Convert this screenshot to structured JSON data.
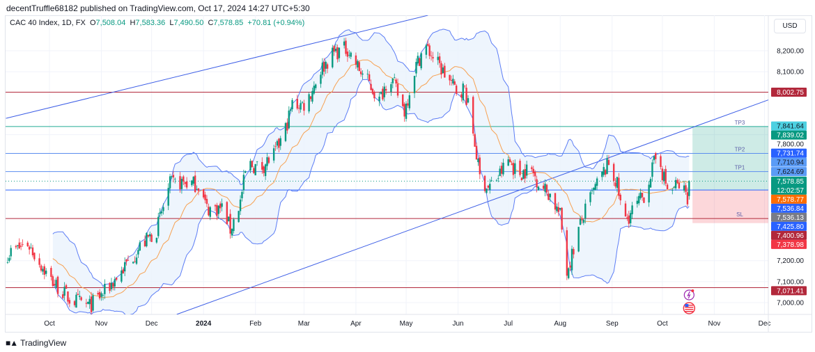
{
  "header": {
    "published": "decentTruffle68182 published on TradingView.com, Oct 17, 2024 14:27 UTC+5:30"
  },
  "legend": {
    "symbol": "CAC 40 Index, 1D, FX",
    "open_label": "O",
    "open": "7,508.04",
    "high_label": "H",
    "high": "7,583.36",
    "low_label": "L",
    "low": "7,490.50",
    "close_label": "C",
    "close": "7,578.85",
    "change": "+70.81 (+0.94%)"
  },
  "currency": "USD",
  "footer": {
    "brand": "TradingView",
    "logo_text": "TV"
  },
  "colors": {
    "up": "#089981",
    "down": "#f23645",
    "bands": "#5b7cf5",
    "basis": "#f7a050",
    "band_fill": "#eaf3fd"
  },
  "chart_data": {
    "type": "candlestick",
    "symbol": "CAC 40 Index",
    "interval": "1D",
    "indicators": [
      "Bollinger Bands (20, 2)"
    ],
    "x_ticks": [
      {
        "date": "2023-10-01",
        "label": "Oct"
      },
      {
        "date": "2023-11-01",
        "label": "Nov"
      },
      {
        "date": "2023-12-01",
        "label": "Dec"
      },
      {
        "date": "2024-01-01",
        "label": "2024",
        "bold": true
      },
      {
        "date": "2024-02-01",
        "label": "Feb"
      },
      {
        "date": "2024-03-01",
        "label": "Mar"
      },
      {
        "date": "2024-04-01",
        "label": "Apr"
      },
      {
        "date": "2024-05-01",
        "label": "May"
      },
      {
        "date": "2024-06-01",
        "label": "Jun"
      },
      {
        "date": "2024-07-01",
        "label": "Jul"
      },
      {
        "date": "2024-08-01",
        "label": "Aug"
      },
      {
        "date": "2024-09-01",
        "label": "Sep"
      },
      {
        "date": "2024-10-01",
        "label": "Oct"
      },
      {
        "date": "2024-11-01",
        "label": "Nov"
      },
      {
        "date": "2024-12-01",
        "label": "Dec"
      }
    ],
    "y_ticks": [
      {
        "value": 8200,
        "label": "8,200.00"
      },
      {
        "value": 8100,
        "label": "8,100.00"
      },
      {
        "value": 7800,
        "label": "7,800.00"
      },
      {
        "value": 7200,
        "label": "7,200.00"
      },
      {
        "value": 7100,
        "label": "7,100.00"
      },
      {
        "value": 7000,
        "label": "7,000.00"
      }
    ],
    "approx_closes": [
      [
        "2023-09-06",
        7232
      ],
      [
        "2023-09-18",
        7282
      ],
      [
        "2023-10-01",
        7116
      ],
      [
        "2023-10-13",
        7017
      ],
      [
        "2023-10-25",
        6984
      ],
      [
        "2023-11-03",
        7050
      ],
      [
        "2023-11-13",
        7150
      ],
      [
        "2023-11-24",
        7265
      ],
      [
        "2023-12-04",
        7348
      ],
      [
        "2023-12-12",
        7563
      ],
      [
        "2023-12-19",
        7573
      ],
      [
        "2023-12-29",
        7563
      ],
      [
        "2024-01-03",
        7448
      ],
      [
        "2024-01-13",
        7450
      ],
      [
        "2024-01-17",
        7348
      ],
      [
        "2024-01-23",
        7481
      ],
      [
        "2024-01-27",
        7663
      ],
      [
        "2024-02-04",
        7640
      ],
      [
        "2024-02-13",
        7713
      ],
      [
        "2024-02-19",
        7829
      ],
      [
        "2024-02-23",
        7945
      ],
      [
        "2024-03-02",
        7945
      ],
      [
        "2024-03-11",
        8110
      ],
      [
        "2024-03-19",
        8193
      ],
      [
        "2024-03-27",
        8210
      ],
      [
        "2024-04-03",
        8110
      ],
      [
        "2024-04-09",
        8044
      ],
      [
        "2024-04-15",
        7961
      ],
      [
        "2024-04-21",
        8094
      ],
      [
        "2024-04-30",
        7912
      ],
      [
        "2024-05-06",
        8110
      ],
      [
        "2024-05-12",
        8226
      ],
      [
        "2024-05-18",
        8160
      ],
      [
        "2024-05-25",
        8077
      ],
      [
        "2024-05-31",
        8011
      ],
      [
        "2024-06-05",
        8020
      ],
      [
        "2024-06-10",
        7812
      ],
      [
        "2024-06-14",
        7597
      ],
      [
        "2024-06-19",
        7547
      ],
      [
        "2024-06-25",
        7600
      ],
      [
        "2024-07-01",
        7680
      ],
      [
        "2024-07-07",
        7613
      ],
      [
        "2024-07-14",
        7640
      ],
      [
        "2024-07-20",
        7563
      ],
      [
        "2024-07-26",
        7514
      ],
      [
        "2024-08-01",
        7414
      ],
      [
        "2024-08-05",
        7149
      ],
      [
        "2024-08-08",
        7230
      ],
      [
        "2024-08-12",
        7348
      ],
      [
        "2024-08-18",
        7481
      ],
      [
        "2024-08-24",
        7580
      ],
      [
        "2024-08-30",
        7663
      ],
      [
        "2024-09-04",
        7560
      ],
      [
        "2024-09-08",
        7381
      ],
      [
        "2024-09-14",
        7448
      ],
      [
        "2024-09-20",
        7510
      ],
      [
        "2024-09-24",
        7613
      ],
      [
        "2024-09-29",
        7729
      ],
      [
        "2024-10-01",
        7620
      ],
      [
        "2024-10-05",
        7514
      ],
      [
        "2024-10-09",
        7560
      ],
      [
        "2024-10-13",
        7545
      ],
      [
        "2024-10-16",
        7508.04
      ],
      [
        "2024-10-17",
        7578.85
      ]
    ],
    "last_bar": {
      "open": 7508.04,
      "high": 7583.36,
      "low": 7490.5,
      "close": 7578.85
    },
    "trendlines": [
      {
        "from": [
          "2023-09-05",
          7878
        ],
        "to": [
          "2024-05-14",
          8369
        ]
      },
      {
        "from": [
          "2023-12-16",
          6944
        ],
        "to": [
          "2024-12-04",
          7968
        ]
      }
    ],
    "horizontal_lines": [
      {
        "price": 8002.75,
        "color": "#b2283b"
      },
      {
        "price": 7839.02,
        "color": "#22ab94"
      },
      {
        "price": 7710.94,
        "color": "#5b8def"
      },
      {
        "price": 7624.69,
        "color": "#5b8def"
      },
      {
        "price": 7536.84,
        "color": "#2962ff"
      },
      {
        "price": 7400.96,
        "color": "#b2283b"
      },
      {
        "price": 7071.41,
        "color": "#b2283b"
      }
    ],
    "position": {
      "start_date": "2024-10-19",
      "target": 7839.02,
      "entry": 7536.84,
      "stop": 7378.98,
      "labels": [
        {
          "text": "TP3",
          "price": 7839.02
        },
        {
          "text": "TP2",
          "price": 7710.94
        },
        {
          "text": "TP1",
          "price": 7624.69
        },
        {
          "text": "SL",
          "price": 7400.96
        }
      ]
    },
    "price_labels": [
      {
        "text": "8,002.75",
        "value": 8002.75,
        "bg": "#b2283b",
        "fg": "#ffffff"
      },
      {
        "text": "7,841.64",
        "value": 7841.64,
        "bg": "#4dd0e1",
        "fg": "#131722"
      },
      {
        "text": "7,839.02",
        "value": 7839.02,
        "bg": "#089981",
        "fg": "#ffffff"
      },
      {
        "text": "7,731.74",
        "value": 7731.74,
        "bg": "#2962ff",
        "fg": "#ffffff"
      },
      {
        "text": "7,710.94",
        "value": 7710.94,
        "bg": "#5b9cf6",
        "fg": "#131722"
      },
      {
        "text": "7,624.69",
        "value": 7624.69,
        "bg": "#5b9cf6",
        "fg": "#131722"
      },
      {
        "text": "7,578.85",
        "sub": "12:02:57",
        "value": 7578.85,
        "bg": "#089981",
        "fg": "#ffffff"
      },
      {
        "text": "7,578.77",
        "value": 7578.77,
        "bg": "#ff6d00",
        "fg": "#ffffff"
      },
      {
        "text": "7,536.84",
        "value": 7536.84,
        "bg": "#2962ff",
        "fg": "#ffffff"
      },
      {
        "text": "7,536.13",
        "value": 7536.13,
        "bg": "#787b86",
        "fg": "#ffffff"
      },
      {
        "text": "7,425.80",
        "value": 7425.8,
        "bg": "#2962ff",
        "fg": "#ffffff"
      },
      {
        "text": "7,400.96",
        "value": 7400.96,
        "bg": "#b2283b",
        "fg": "#ffffff"
      },
      {
        "text": "7,378.98",
        "value": 7378.98,
        "bg": "#f23645",
        "fg": "#ffffff"
      },
      {
        "text": "7,071.41",
        "value": 7071.41,
        "bg": "#b2283b",
        "fg": "#ffffff"
      }
    ],
    "events": [
      {
        "icon": "lightning-icon"
      },
      {
        "icon": "us-flag-icon"
      }
    ]
  }
}
